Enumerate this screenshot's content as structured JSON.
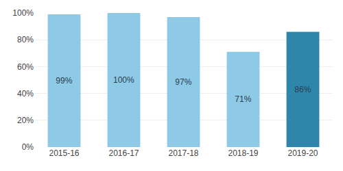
{
  "chart_data": {
    "type": "bar",
    "categories": [
      "2015-16",
      "2016-17",
      "2017-18",
      "2018-19",
      "2019-20"
    ],
    "values": [
      99,
      100,
      97,
      71,
      86
    ],
    "colors": [
      "#8ecae6",
      "#8ecae6",
      "#8ecae6",
      "#8ecae6",
      "#2e86ab"
    ],
    "data_labels": true,
    "value_labels": [
      "99%",
      "100%",
      "97%",
      "71%",
      "86%"
    ],
    "ylim": [
      0,
      100
    ],
    "yticks": [
      {
        "value": 0,
        "label": "0%"
      },
      {
        "value": 20,
        "label": "20%"
      },
      {
        "value": 40,
        "label": "40%"
      },
      {
        "value": 60,
        "label": "60%"
      },
      {
        "value": 80,
        "label": "80%"
      },
      {
        "value": 100,
        "label": "100%"
      }
    ],
    "grid": true
  }
}
